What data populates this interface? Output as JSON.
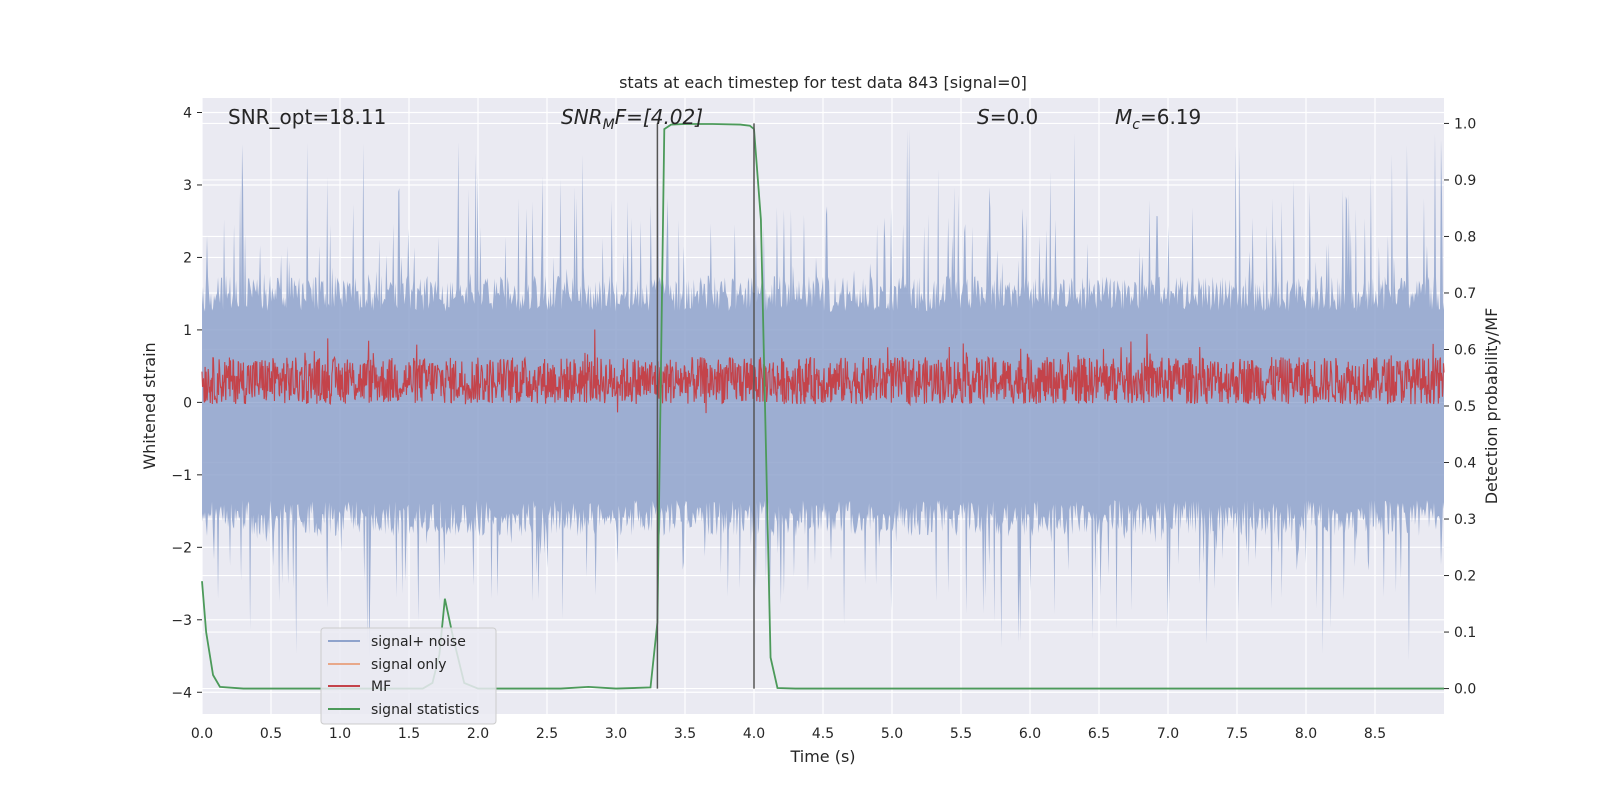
{
  "chart_data": {
    "type": "line",
    "title": "stats at each timestep for test data 843 [signal=0]",
    "xlabel": "Time (s)",
    "ylabel": "Whitened strain",
    "ylabel_right": "Detection probability/MF",
    "xlim": [
      0.0,
      9.0
    ],
    "ylim": [
      -4.3,
      4.2
    ],
    "ylim_right": [
      -0.045,
      1.045
    ],
    "x_ticks": [
      "0.0",
      "0.5",
      "1.0",
      "1.5",
      "2.0",
      "2.5",
      "3.0",
      "3.5",
      "4.0",
      "4.5",
      "5.0",
      "5.5",
      "6.0",
      "6.5",
      "7.0",
      "7.5",
      "8.0",
      "8.5"
    ],
    "y_ticks": [
      "4",
      "3",
      "2",
      "1",
      "0",
      "−1",
      "−2",
      "−3",
      "−4"
    ],
    "y_ticks_right": [
      "1.0",
      "0.9",
      "0.8",
      "0.7",
      "0.6",
      "0.5",
      "0.4",
      "0.3",
      "0.2",
      "0.1",
      "0.0"
    ],
    "grid": true,
    "legend_placement": "lower-left",
    "annotations": {
      "snr_opt": "SNR_opt=18.11",
      "snr_mf_base": "SNR",
      "snr_mf_sub": "M",
      "snr_mf_rest": "F=[4.02]",
      "s_italic": "S",
      "s_rest": "=0.0",
      "mc_italic": "M",
      "mc_sub": "c",
      "mc_rest": "=6.19"
    },
    "vertical_markers": [
      3.3,
      4.0
    ],
    "series": [
      {
        "name": "signal+ noise",
        "color": "#8fa3cc",
        "description_stats": {
          "band_upper": 1.5,
          "band_lower": -1.6,
          "peak_max": 3.8,
          "peak_min": -3.6
        }
      },
      {
        "name": "signal only",
        "color": "#e8a88a"
      },
      {
        "name": "MF",
        "color": "#c4434a",
        "description_stats": {
          "mean": 0.3,
          "upper": 0.65,
          "lower": 0.0
        }
      },
      {
        "name": "signal statistics",
        "color": "#4c9a5a",
        "x": [
          0.0,
          0.03,
          0.08,
          0.13,
          0.3,
          1.0,
          1.6,
          1.67,
          1.72,
          1.76,
          1.82,
          1.9,
          2.0,
          2.6,
          2.8,
          3.0,
          3.25,
          3.3,
          3.35,
          3.4,
          3.5,
          3.7,
          3.9,
          3.97,
          4.0,
          4.05,
          4.12,
          4.17,
          4.3,
          5.0,
          6.0,
          7.0,
          8.0,
          9.0
        ],
        "values": [
          0.19,
          0.1,
          0.024,
          0.003,
          0.0,
          0.0,
          0.0,
          0.01,
          0.06,
          0.159,
          0.09,
          0.01,
          0.0,
          0.0,
          0.003,
          0.0,
          0.002,
          0.117,
          0.99,
          0.998,
          0.999,
          0.999,
          0.998,
          0.996,
          0.99,
          0.83,
          0.055,
          0.001,
          0.0,
          0.0,
          0.0,
          0.0,
          0.0,
          0.0
        ]
      }
    ]
  }
}
